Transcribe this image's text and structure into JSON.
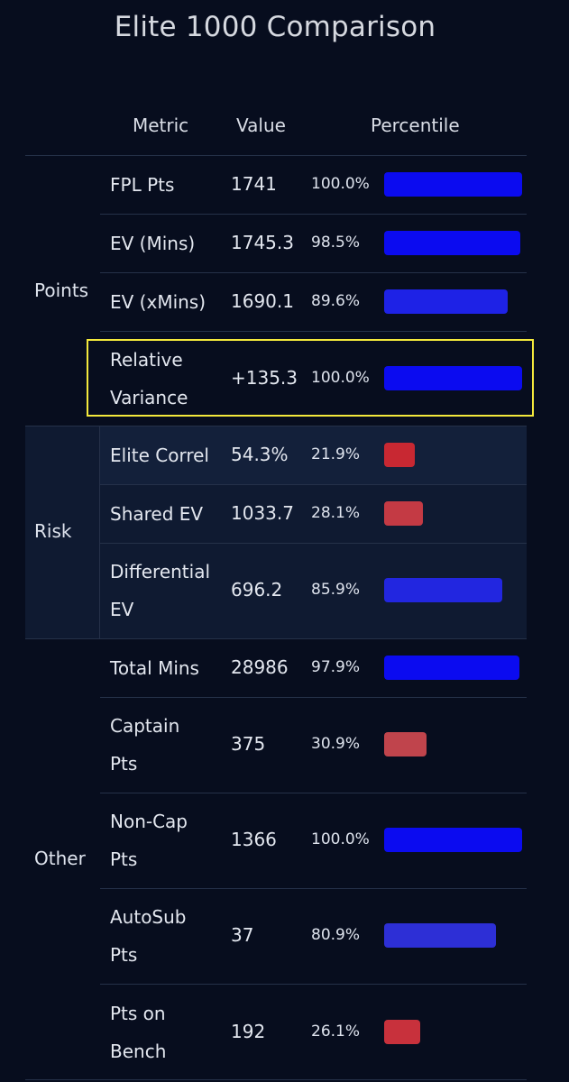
{
  "title": "Elite 1000 Comparison",
  "headers": {
    "metric": "Metric",
    "value": "Value",
    "percentile": "Percentile"
  },
  "groups": {
    "points": "Points",
    "risk": "Risk",
    "other": "Other"
  },
  "rows": [
    {
      "metric": [
        "FPL Pts"
      ],
      "value": "1741",
      "pct": "100.0%",
      "pct_value": 100.0,
      "bar_color": "#0b0bf0"
    },
    {
      "metric": [
        "EV (Mins)"
      ],
      "value": "1745.3",
      "pct": "98.5%",
      "pct_value": 98.5,
      "bar_color": "#0b0bf0"
    },
    {
      "metric": [
        "EV (xMins)"
      ],
      "value": "1690.1",
      "pct": "89.6%",
      "pct_value": 89.6,
      "bar_color": "#1e22e6"
    },
    {
      "metric": [
        "Relative",
        "Variance"
      ],
      "value": "+135.3",
      "pct": "100.0%",
      "pct_value": 100.0,
      "bar_color": "#0b0bf0"
    },
    {
      "metric": [
        "Elite Correl"
      ],
      "value": "54.3%",
      "pct": "21.9%",
      "pct_value": 21.9,
      "bar_color": "#c82832"
    },
    {
      "metric": [
        "Shared EV"
      ],
      "value": "1033.7",
      "pct": "28.1%",
      "pct_value": 28.1,
      "bar_color": "#c43a44"
    },
    {
      "metric": [
        "Differential",
        "EV"
      ],
      "value": "696.2",
      "pct": "85.9%",
      "pct_value": 85.9,
      "bar_color": "#2226e0"
    },
    {
      "metric": [
        "Total Mins"
      ],
      "value": "28986",
      "pct": "97.9%",
      "pct_value": 97.9,
      "bar_color": "#0b0bf0"
    },
    {
      "metric": [
        "Captain",
        "Pts"
      ],
      "value": "375",
      "pct": "30.9%",
      "pct_value": 30.9,
      "bar_color": "#c0444c"
    },
    {
      "metric": [
        "Non-Cap",
        "Pts"
      ],
      "value": "1366",
      "pct": "100.0%",
      "pct_value": 100.0,
      "bar_color": "#0b0bf0"
    },
    {
      "metric": [
        "AutoSub",
        "Pts"
      ],
      "value": "37",
      "pct": "80.9%",
      "pct_value": 80.9,
      "bar_color": "#2d2fd6"
    },
    {
      "metric": [
        "Pts on",
        "Bench"
      ],
      "value": "192",
      "pct": "26.1%",
      "pct_value": 26.1,
      "bar_color": "#c8313c"
    }
  ]
}
